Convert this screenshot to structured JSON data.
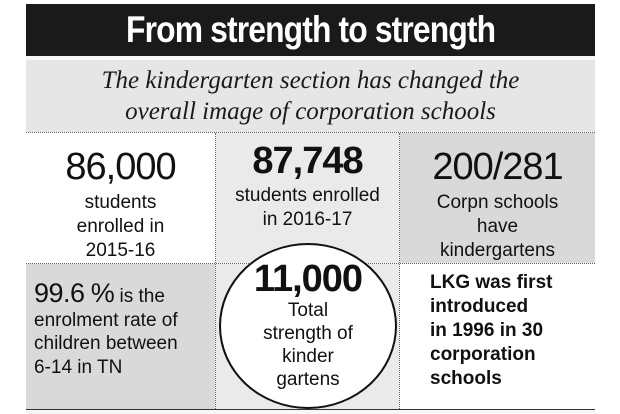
{
  "title": "From strength to strength",
  "subtitle_lines": [
    "The kindergarten section has changed the",
    "overall image of corporation schools"
  ],
  "stats": {
    "enrolled_2015": {
      "value": "86,000",
      "lines": [
        "students",
        "enrolled in",
        "2015-16"
      ]
    },
    "enrolled_2016": {
      "value": "87,748",
      "lines": [
        "students enrolled",
        "in 2016-17"
      ]
    },
    "schools": {
      "value": "200/281",
      "lines": [
        "Corpn schools",
        "have",
        "kindergartens"
      ]
    },
    "enrolment_rate": {
      "value": "99.6",
      "unit": "%",
      "tail": " is the",
      "lines": [
        "enrolment rate of",
        "children between",
        "6-14 in TN"
      ]
    },
    "strength": {
      "value": "11,000",
      "lines": [
        "Total",
        "strength of",
        "kinder",
        "gartens"
      ]
    },
    "lkg_note": {
      "lines": [
        "LKG was first",
        "introduced",
        "in 1996 in 30",
        "corporation",
        "schools"
      ]
    }
  },
  "colors": {
    "title_bar": "#1a1a1a",
    "subtitle_bg": "#e6e6e6",
    "cell_dark": "#d9d9d9",
    "cell_light": "#eaeaea"
  }
}
